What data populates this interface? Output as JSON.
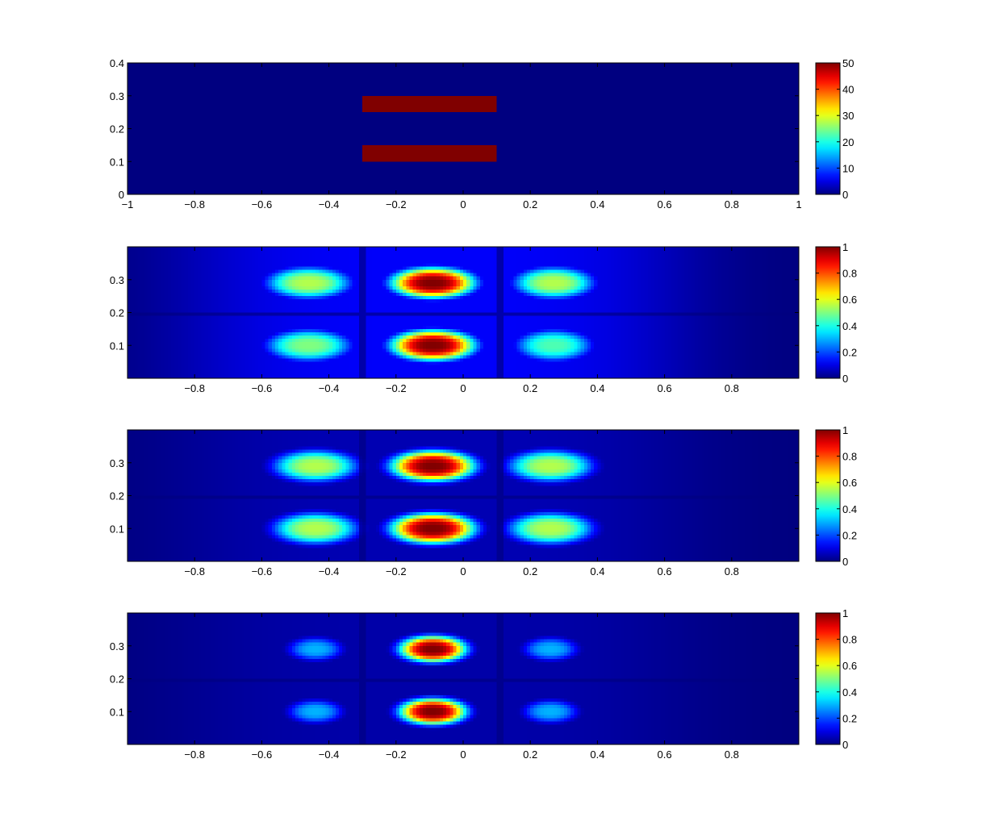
{
  "chart_data": [
    {
      "type": "heatmap",
      "title": "",
      "xlabel": "",
      "ylabel": "",
      "colormap": "jet",
      "xlim": [
        -1,
        1
      ],
      "ylim": [
        0,
        0.4
      ],
      "x_ticks": [
        -1,
        -0.8,
        -0.6,
        -0.4,
        -0.2,
        0,
        0.2,
        0.4,
        0.6,
        0.8,
        1
      ],
      "x_tick_labels": [
        "−1",
        "−0.8",
        "−0.6",
        "−0.4",
        "−0.2",
        "0",
        "0.2",
        "0.4",
        "0.6",
        "0.8",
        "1"
      ],
      "y_ticks": [
        0,
        0.1,
        0.2,
        0.3,
        0.4
      ],
      "y_tick_labels": [
        "0",
        "0.1",
        "0.2",
        "0.3",
        "0.4"
      ],
      "colorbar": {
        "min": 0,
        "max": 50,
        "ticks": [
          0,
          10,
          20,
          30,
          40,
          50
        ],
        "tick_labels": [
          "0",
          "10",
          "20",
          "30",
          "40",
          "50"
        ]
      },
      "background_value": 0,
      "regions": [
        {
          "x": [
            -0.3,
            0.1
          ],
          "y": [
            0.25,
            0.3
          ],
          "value": 50
        },
        {
          "x": [
            -0.3,
            0.1
          ],
          "y": [
            0.1,
            0.15
          ],
          "value": 50
        }
      ]
    },
    {
      "type": "heatmap",
      "title": "",
      "xlabel": "",
      "ylabel": "",
      "colormap": "jet",
      "xlim": [
        -1,
        1
      ],
      "ylim": [
        0,
        0.4
      ],
      "x_ticks": [
        -0.8,
        -0.6,
        -0.4,
        -0.2,
        0,
        0.2,
        0.4,
        0.6,
        0.8
      ],
      "x_tick_labels": [
        "−0.8",
        "−0.6",
        "−0.4",
        "−0.2",
        "0",
        "0.2",
        "0.4",
        "0.6",
        "0.8"
      ],
      "y_ticks": [
        0.1,
        0.2,
        0.3
      ],
      "y_tick_labels": [
        "0.1",
        "0.2",
        "0.3"
      ],
      "colorbar": {
        "min": 0,
        "max": 1,
        "ticks": [
          0,
          0.2,
          0.4,
          0.6,
          0.8,
          1
        ],
        "tick_labels": [
          "0",
          "0.2",
          "0.4",
          "0.6",
          "0.8",
          "1"
        ]
      },
      "blobs": [
        {
          "x": -0.09,
          "y": 0.29,
          "sx": 0.1,
          "sy": 0.037,
          "value": 1.0
        },
        {
          "x": -0.09,
          "y": 0.1,
          "sx": 0.1,
          "sy": 0.037,
          "value": 1.0
        },
        {
          "x": -0.46,
          "y": 0.29,
          "sx": 0.1,
          "sy": 0.038,
          "value": 0.55
        },
        {
          "x": -0.46,
          "y": 0.1,
          "sx": 0.1,
          "sy": 0.038,
          "value": 0.5
        },
        {
          "x": 0.27,
          "y": 0.29,
          "sx": 0.095,
          "sy": 0.038,
          "value": 0.55
        },
        {
          "x": 0.27,
          "y": 0.1,
          "sx": 0.09,
          "sy": 0.038,
          "value": 0.45
        }
      ],
      "baseline": 0.12
    },
    {
      "type": "heatmap",
      "title": "",
      "xlabel": "",
      "ylabel": "",
      "colormap": "jet",
      "xlim": [
        -1,
        1
      ],
      "ylim": [
        0,
        0.4
      ],
      "x_ticks": [
        -0.8,
        -0.6,
        -0.4,
        -0.2,
        0,
        0.2,
        0.4,
        0.6,
        0.8
      ],
      "x_tick_labels": [
        "−0.8",
        "−0.6",
        "−0.4",
        "−0.2",
        "0",
        "0.2",
        "0.4",
        "0.6",
        "0.8"
      ],
      "y_ticks": [
        0.1,
        0.2,
        0.3
      ],
      "y_tick_labels": [
        "0.1",
        "0.2",
        "0.3"
      ],
      "colorbar": {
        "min": 0,
        "max": 1,
        "ticks": [
          0,
          0.2,
          0.4,
          0.6,
          0.8,
          1
        ],
        "tick_labels": [
          "0",
          "0.2",
          "0.4",
          "0.6",
          "0.8",
          "1"
        ]
      },
      "blobs": [
        {
          "x": -0.09,
          "y": 0.29,
          "sx": 0.1,
          "sy": 0.037,
          "value": 1.0
        },
        {
          "x": -0.09,
          "y": 0.1,
          "sx": 0.1,
          "sy": 0.037,
          "value": 1.0
        },
        {
          "x": -0.44,
          "y": 0.29,
          "sx": 0.1,
          "sy": 0.038,
          "value": 0.55
        },
        {
          "x": -0.44,
          "y": 0.1,
          "sx": 0.1,
          "sy": 0.038,
          "value": 0.55
        },
        {
          "x": 0.26,
          "y": 0.29,
          "sx": 0.1,
          "sy": 0.038,
          "value": 0.55
        },
        {
          "x": 0.26,
          "y": 0.1,
          "sx": 0.1,
          "sy": 0.038,
          "value": 0.55
        }
      ],
      "baseline": 0.05
    },
    {
      "type": "heatmap",
      "title": "",
      "xlabel": "",
      "ylabel": "",
      "colormap": "jet",
      "xlim": [
        -1,
        1
      ],
      "ylim": [
        0,
        0.4
      ],
      "x_ticks": [
        -0.8,
        -0.6,
        -0.4,
        -0.2,
        0,
        0.2,
        0.4,
        0.6,
        0.8
      ],
      "x_tick_labels": [
        "−0.8",
        "−0.6",
        "−0.4",
        "−0.2",
        "0",
        "0.2",
        "0.4",
        "0.6",
        "0.8"
      ],
      "y_ticks": [
        0.1,
        0.2,
        0.3
      ],
      "y_tick_labels": [
        "0.1",
        "0.2",
        "0.3"
      ],
      "colorbar": {
        "min": 0,
        "max": 1,
        "ticks": [
          0,
          0.2,
          0.4,
          0.6,
          0.8,
          1
        ],
        "tick_labels": [
          "0",
          "0.2",
          "0.4",
          "0.6",
          "0.8",
          "1"
        ]
      },
      "blobs": [
        {
          "x": -0.09,
          "y": 0.29,
          "sx": 0.08,
          "sy": 0.032,
          "value": 1.0
        },
        {
          "x": -0.09,
          "y": 0.1,
          "sx": 0.08,
          "sy": 0.032,
          "value": 1.0
        },
        {
          "x": -0.44,
          "y": 0.29,
          "sx": 0.065,
          "sy": 0.028,
          "value": 0.3
        },
        {
          "x": -0.44,
          "y": 0.1,
          "sx": 0.065,
          "sy": 0.028,
          "value": 0.3
        },
        {
          "x": 0.26,
          "y": 0.29,
          "sx": 0.065,
          "sy": 0.028,
          "value": 0.3
        },
        {
          "x": 0.26,
          "y": 0.1,
          "sx": 0.065,
          "sy": 0.028,
          "value": 0.3
        }
      ],
      "baseline": 0.04
    }
  ]
}
